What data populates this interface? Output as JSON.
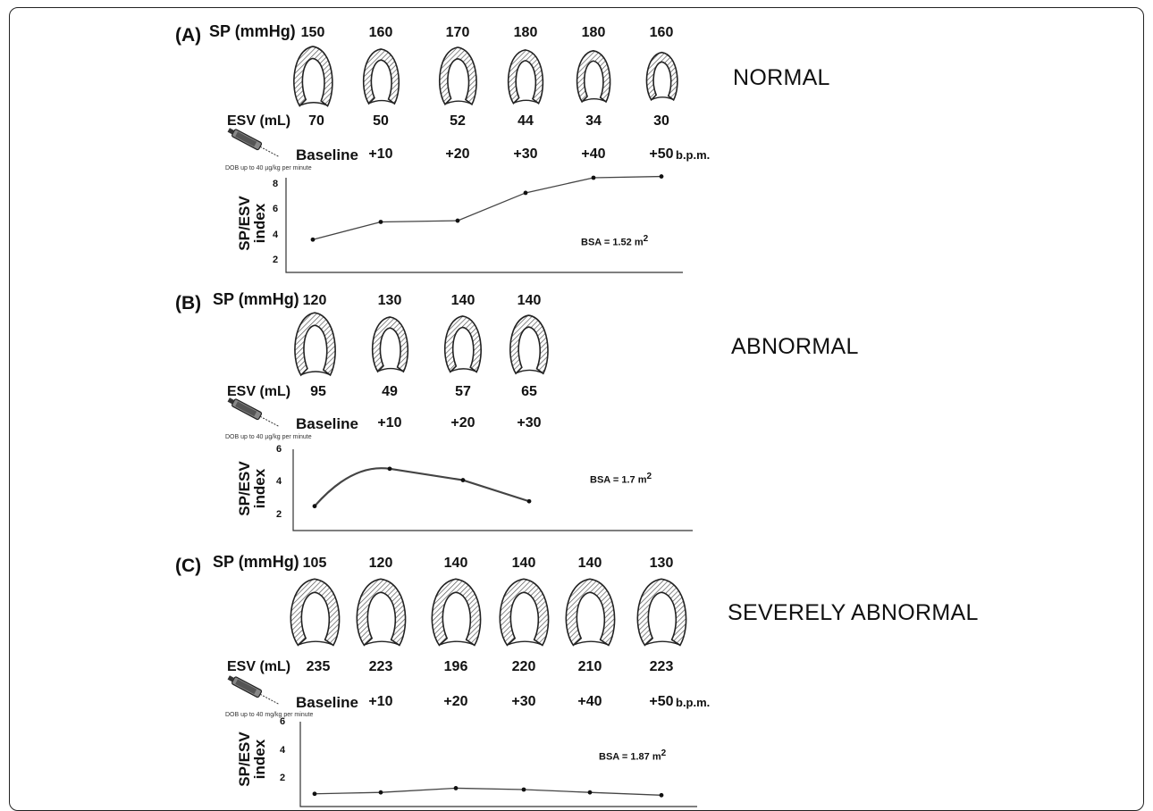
{
  "panels": [
    {
      "label": "(A)",
      "sp_label": "SP (mmHg)",
      "sp_values": [
        "150",
        "160",
        "170",
        "180",
        "180",
        "160"
      ],
      "esv_label": "ESV (mL)",
      "esv_values": [
        "70",
        "50",
        "52",
        "44",
        "34",
        "30"
      ],
      "dose_steps": [
        "Baseline",
        "+10",
        "+20",
        "+30",
        "+40",
        "+50"
      ],
      "unit_suffix": "b.p.m.",
      "dob_note": "DOB up to 40 µg/kg per minute",
      "classification": "NORMAL",
      "bsa_text": "BSA = 1.52 m",
      "bsa_sup": "2",
      "ylabel_line1": "SP/ESV",
      "ylabel_line2": "index",
      "yticks": [
        "8",
        "6",
        "4",
        "2"
      ]
    },
    {
      "label": "(B)",
      "sp_label": "SP (mmHg)",
      "sp_values": [
        "120",
        "130",
        "140",
        "140"
      ],
      "esv_label": "ESV (mL)",
      "esv_values": [
        "95",
        "49",
        "57",
        "65"
      ],
      "dose_steps": [
        "Baseline",
        "+10",
        "+20",
        "+30"
      ],
      "unit_suffix": "",
      "dob_note": "DOB up to 40 µg/kg per minute",
      "classification": "ABNORMAL",
      "bsa_text": "BSA = 1.7 m",
      "bsa_sup": "2",
      "ylabel_line1": "SP/ESV",
      "ylabel_line2": "index",
      "yticks": [
        "6",
        "4",
        "2"
      ]
    },
    {
      "label": "(C)",
      "sp_label": "SP (mmHg)",
      "sp_values": [
        "105",
        "120",
        "140",
        "140",
        "140",
        "130"
      ],
      "esv_label": "ESV (mL)",
      "esv_values": [
        "235",
        "223",
        "196",
        "220",
        "210",
        "223"
      ],
      "dose_steps": [
        "Baseline",
        "+10",
        "+20",
        "+30",
        "+40",
        "+50"
      ],
      "unit_suffix": "b.p.m.",
      "dob_note": "DOB up to 40 mg/kg per minute",
      "classification": "SEVERELY ABNORMAL",
      "bsa_text": "BSA = 1.87 m",
      "bsa_sup": "2",
      "ylabel_line1": "SP/ESV",
      "ylabel_line2": "index",
      "yticks": [
        "6",
        "4",
        "2"
      ]
    }
  ],
  "chart_data": [
    {
      "type": "line",
      "x": [
        "Baseline",
        "+10",
        "+20",
        "+30",
        "+40",
        "+50"
      ],
      "y": [
        3.6,
        5.0,
        5.1,
        7.3,
        8.5,
        8.6
      ],
      "ylim": [
        1,
        8.5
      ],
      "xlabel": "",
      "ylabel": "SP/ESV index"
    },
    {
      "type": "line",
      "x": [
        "Baseline",
        "+10",
        "+20",
        "+30"
      ],
      "y": [
        2.5,
        4.8,
        4.1,
        2.8
      ],
      "ylim": [
        1,
        6
      ],
      "xlabel": "",
      "ylabel": "SP/ESV index"
    },
    {
      "type": "line",
      "x": [
        "Baseline",
        "+10",
        "+20",
        "+30",
        "+40",
        "+50"
      ],
      "y": [
        0.9,
        1.0,
        1.3,
        1.2,
        1.0,
        0.8
      ],
      "ylim": [
        0,
        6
      ],
      "xlabel": "",
      "ylabel": "SP/ESV index"
    }
  ],
  "colors": {
    "line": "#444444",
    "hatch": "#555555",
    "axis": "#333333"
  },
  "icons": [
    "syringe-icon",
    "ventricle-icon"
  ]
}
